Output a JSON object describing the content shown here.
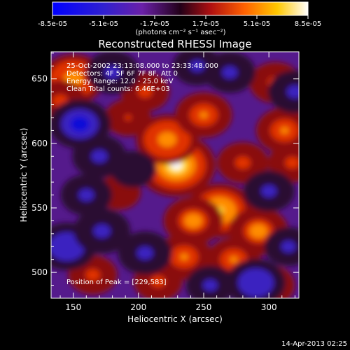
{
  "chart_data": {
    "type": "heatmap",
    "title": "Reconstructed RHESSI Image",
    "xlabel": "Heliocentric X (arcsec)",
    "ylabel": "Heliocentric Y (arcsec)",
    "xlim": [
      133,
      323
    ],
    "ylim": [
      480,
      671
    ],
    "xticks": [
      150,
      200,
      250,
      300
    ],
    "yticks": [
      500,
      550,
      600,
      650
    ],
    "colorbar": {
      "ticks": [
        "-8.5e-05",
        "-5.1e-05",
        "-1.7e-05",
        "1.7e-05",
        "5.1e-05",
        "8.5e-05"
      ],
      "units": "(photons cm⁻² s⁻¹ asec⁻²)",
      "min": -8.5e-05,
      "max": 8.5e-05
    },
    "annotations": [
      "25-Oct-2002 23:13:08.000 to 23:33:48.000",
      "Detectors: 4F 5F 6F 7F 8F, Att 0",
      "Energy Range: 12.0 - 25.0 keV",
      "Clean     Total counts: 6.46E+03"
    ],
    "peak_label": "Position of Peak = [229,583]",
    "peak": [
      229,
      583
    ],
    "timestamp": "14-Apr-2013 02:25",
    "blobs": [
      {
        "x": 229,
        "y": 583,
        "v": 8.5e-05
      },
      {
        "x": 262,
        "y": 548,
        "v": 6.5e-05
      },
      {
        "x": 242,
        "y": 540,
        "v": 5e-05
      },
      {
        "x": 222,
        "y": 603,
        "v": 5.5e-05
      },
      {
        "x": 250,
        "y": 622,
        "v": 4.5e-05
      },
      {
        "x": 292,
        "y": 532,
        "v": 5e-05
      },
      {
        "x": 273,
        "y": 510,
        "v": 4e-05
      },
      {
        "x": 235,
        "y": 512,
        "v": 4.5e-05
      },
      {
        "x": 150,
        "y": 650,
        "v": 5.5e-05
      },
      {
        "x": 140,
        "y": 633,
        "v": 3.5e-05
      },
      {
        "x": 312,
        "y": 610,
        "v": 4.5e-05
      },
      {
        "x": 305,
        "y": 647,
        "v": 3.5e-05
      },
      {
        "x": 318,
        "y": 585,
        "v": 3e-05
      },
      {
        "x": 165,
        "y": 498,
        "v": 3e-05
      },
      {
        "x": 205,
        "y": 640,
        "v": 3e-05
      },
      {
        "x": 185,
        "y": 562,
        "v": 2e-05
      },
      {
        "x": 280,
        "y": 585,
        "v": 3.5e-05
      },
      {
        "x": 215,
        "y": 493,
        "v": 3e-05
      },
      {
        "x": 300,
        "y": 490,
        "v": 3.5e-05
      },
      {
        "x": 192,
        "y": 620,
        "v": 2.5e-05
      },
      {
        "x": 170,
        "y": 590,
        "v": -4e-05
      },
      {
        "x": 155,
        "y": 615,
        "v": -5.5e-05
      },
      {
        "x": 145,
        "y": 520,
        "v": -5e-05
      },
      {
        "x": 172,
        "y": 532,
        "v": -4.5e-05
      },
      {
        "x": 160,
        "y": 560,
        "v": -3.5e-05
      },
      {
        "x": 180,
        "y": 655,
        "v": -4e-05
      },
      {
        "x": 205,
        "y": 515,
        "v": -4e-05
      },
      {
        "x": 290,
        "y": 492,
        "v": -5e-05
      },
      {
        "x": 300,
        "y": 563,
        "v": -3.5e-05
      },
      {
        "x": 320,
        "y": 640,
        "v": -4e-05
      },
      {
        "x": 245,
        "y": 660,
        "v": -3e-05
      },
      {
        "x": 270,
        "y": 655,
        "v": -3.5e-05
      },
      {
        "x": 255,
        "y": 490,
        "v": -3e-05
      },
      {
        "x": 315,
        "y": 520,
        "v": -3e-05
      },
      {
        "x": 196,
        "y": 580,
        "v": -2.5e-05
      }
    ]
  }
}
